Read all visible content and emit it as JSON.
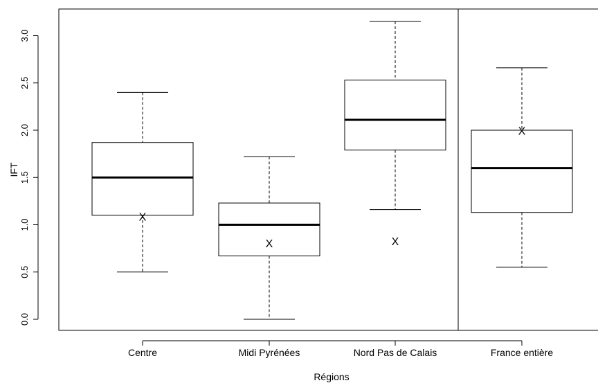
{
  "chart_data": {
    "type": "boxplot",
    "title": "",
    "xlabel": "Régions",
    "ylabel": "IFT",
    "ylim": [
      -0.1,
      3.3
    ],
    "yticks": [
      "0.0",
      "0.5",
      "1.0",
      "1.5",
      "2.0",
      "2.5",
      "3.0"
    ],
    "ytick_values": [
      0.0,
      0.5,
      1.0,
      1.5,
      2.0,
      2.5,
      3.0
    ],
    "grid": false,
    "separator_after_index": 2,
    "categories": [
      "Centre",
      "Midi Pyrénées",
      "Nord Pas de Calais",
      "France entière"
    ],
    "boxes": [
      {
        "label": "Centre",
        "whisker_low": 0.5,
        "q1": 1.1,
        "median": 1.5,
        "q3": 1.87,
        "whisker_high": 2.4,
        "mean": 1.08
      },
      {
        "label": "Midi Pyrénées",
        "whisker_low": 0.0,
        "q1": 0.67,
        "median": 1.0,
        "q3": 1.23,
        "whisker_high": 1.72,
        "mean": 0.8
      },
      {
        "label": "Nord Pas de Calais",
        "whisker_low": 1.16,
        "q1": 1.79,
        "median": 2.11,
        "q3": 2.53,
        "whisker_high": 3.15,
        "mean": 0.82
      },
      {
        "label": "France entière",
        "whisker_low": 0.55,
        "q1": 1.13,
        "median": 1.6,
        "q3": 2.0,
        "whisker_high": 2.66,
        "mean": 1.99
      }
    ],
    "mean_marker": "X"
  }
}
